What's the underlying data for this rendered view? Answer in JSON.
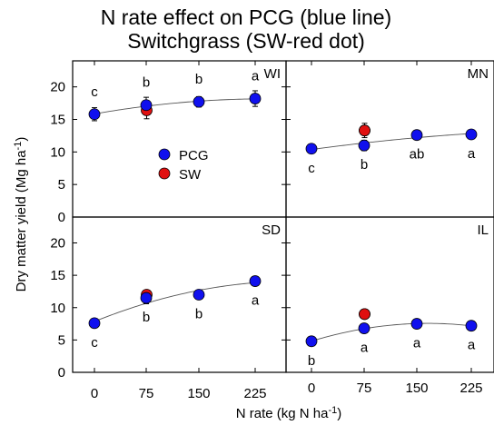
{
  "chart_data": {
    "type": "scatter",
    "title_line1": "N rate effect on PCG (blue line)",
    "title_line2": "Switchgrass (SW-red dot)",
    "xlabel": "N rate (kg N ha",
    "xlabel_sup": "-1",
    "xlabel_close": ")",
    "ylabel": "Dry matter yield (Mg ha",
    "ylabel_sup": "-1",
    "ylabel_close": ")",
    "ylim": [
      0,
      24
    ],
    "yticks": [
      0,
      5,
      10,
      15,
      20
    ],
    "x_categories": [
      "0",
      "75",
      "150",
      "225"
    ],
    "legend": {
      "placement": "left-middle of WI panel",
      "entries": [
        {
          "name": "PCG",
          "color": "#1010ee"
        },
        {
          "name": "SW",
          "color": "#e01010"
        }
      ]
    },
    "colors": {
      "pcg": "#1010ee",
      "sw": "#e01010",
      "fit_line": "#555555"
    },
    "panels": [
      {
        "site": "WI",
        "pcg": [
          {
            "x": 0,
            "y": 15.8,
            "err": 1.0,
            "letter": "c"
          },
          {
            "x": 75,
            "y": 17.2,
            "err": 1.2,
            "letter": "b"
          },
          {
            "x": 150,
            "y": 17.7,
            "err": 0.8,
            "letter": "b"
          },
          {
            "x": 225,
            "y": 18.2,
            "err": 1.2,
            "letter": "a"
          }
        ],
        "sw": [
          {
            "x": 75,
            "y": 16.4,
            "err": 1.3
          }
        ]
      },
      {
        "site": "MN",
        "pcg": [
          {
            "x": 0,
            "y": 10.5,
            "err": 0,
            "letter": "c"
          },
          {
            "x": 75,
            "y": 11.0,
            "err": 0.8,
            "letter": "b"
          },
          {
            "x": 150,
            "y": 12.6,
            "err": 0,
            "letter": "ab"
          },
          {
            "x": 225,
            "y": 12.7,
            "err": 0,
            "letter": "a"
          }
        ],
        "sw": [
          {
            "x": 75,
            "y": 13.3,
            "err": 1.1
          }
        ]
      },
      {
        "site": "SD",
        "pcg": [
          {
            "x": 0,
            "y": 7.6,
            "err": 0,
            "letter": "c"
          },
          {
            "x": 75,
            "y": 11.5,
            "err": 0.9,
            "letter": "b"
          },
          {
            "x": 150,
            "y": 12.0,
            "err": 0,
            "letter": "b"
          },
          {
            "x": 225,
            "y": 14.1,
            "err": 0,
            "letter": "a"
          }
        ],
        "sw": [
          {
            "x": 75,
            "y": 12.0,
            "err": 0
          }
        ]
      },
      {
        "site": "IL",
        "pcg": [
          {
            "x": 0,
            "y": 4.8,
            "err": 0,
            "letter": "b"
          },
          {
            "x": 75,
            "y": 6.8,
            "err": 0,
            "letter": "a"
          },
          {
            "x": 150,
            "y": 7.5,
            "err": 0,
            "letter": "a"
          },
          {
            "x": 225,
            "y": 7.2,
            "err": 0,
            "letter": "a"
          }
        ],
        "sw": [
          {
            "x": 75,
            "y": 9.0,
            "err": 0
          }
        ]
      }
    ]
  }
}
